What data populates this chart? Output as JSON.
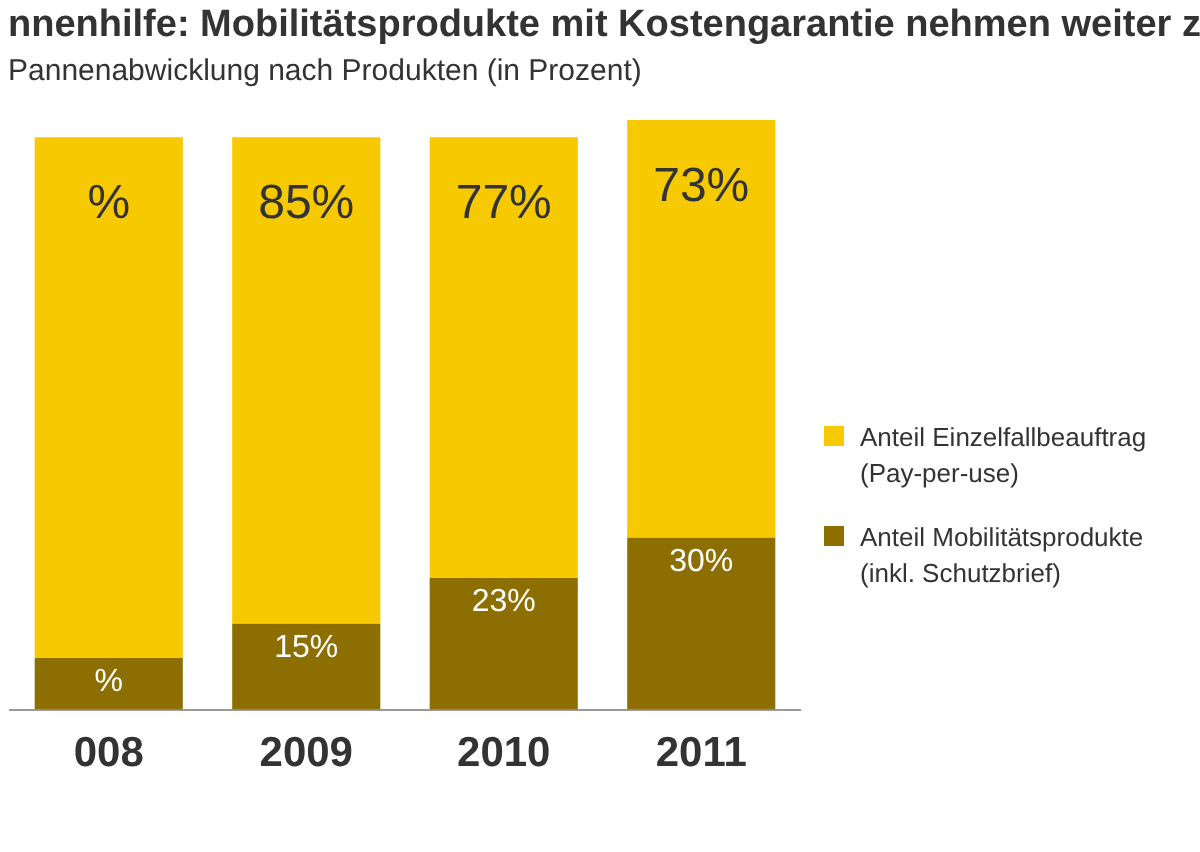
{
  "chart_data": {
    "type": "bar",
    "title": "nnenhilfe: Mobilitätsprodukte mit Kostengarantie nehmen weiter z",
    "subtitle": "Pannenabwicklung nach Produkten (in Prozent)",
    "categories": [
      "008",
      "2009",
      "2010",
      "2011"
    ],
    "stacked": true,
    "ylim": [
      0,
      103
    ],
    "tick_labels": "x",
    "grid": false,
    "legend": "right",
    "series": [
      {
        "name": "Anteil Mobilitätsprodukte\n(inkl. Schutzbrief)",
        "color": "#8c6f00",
        "values": [
          9,
          15,
          23,
          30
        ],
        "value_labels": [
          "%",
          "15%",
          "23%",
          "30%"
        ]
      },
      {
        "name": "Anteil Einzelfallbeauftrag\n(Pay-per-use)",
        "color": "#f7c900",
        "values": [
          91,
          85,
          77,
          73
        ],
        "value_labels": [
          "%",
          "85%",
          "77%",
          "73%"
        ]
      }
    ]
  }
}
